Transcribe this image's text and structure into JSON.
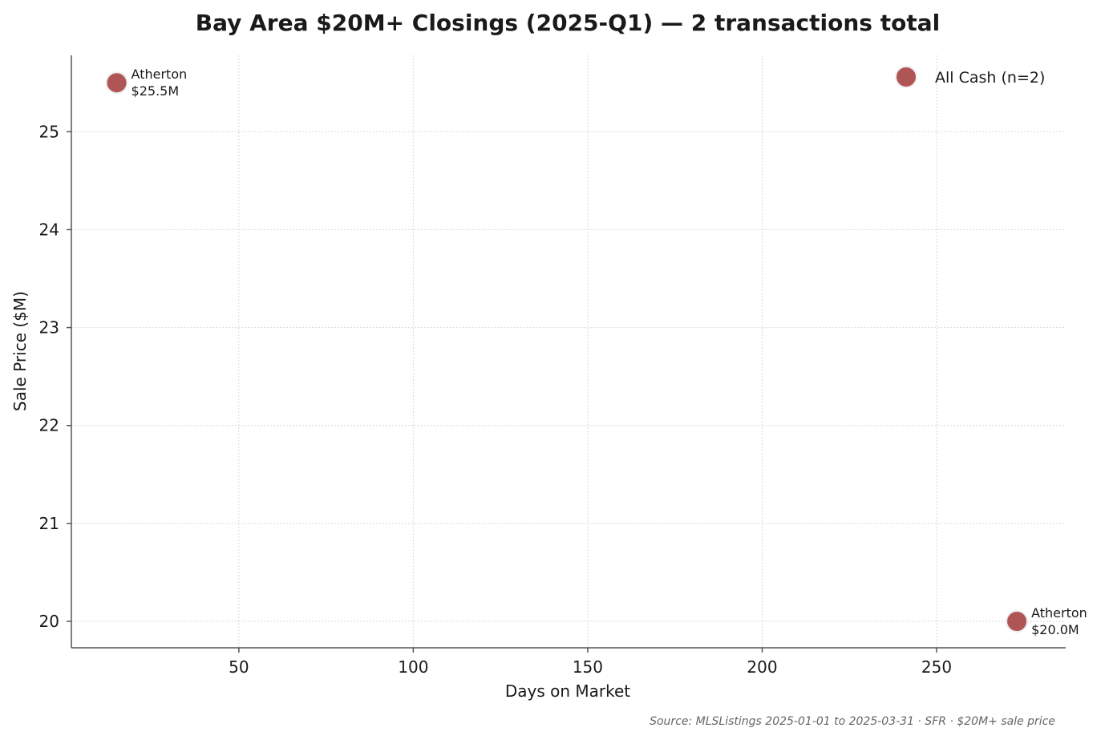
{
  "chart_data": {
    "type": "scatter",
    "title": "Bay Area $20M+ Closings (2025-Q1) — 2 transactions total",
    "xlabel": "Days on Market",
    "ylabel": "Sale Price ($M)",
    "xlim": [
      2,
      287
    ],
    "ylim": [
      19.73,
      25.78
    ],
    "xticks": [
      50,
      100,
      150,
      200,
      250
    ],
    "yticks": [
      20,
      21,
      22,
      23,
      24,
      25
    ],
    "grid": true,
    "legend_position": "top-right",
    "series": [
      {
        "name": "All Cash (n=2)",
        "color": "#b05555",
        "points": [
          {
            "x": 15,
            "y": 25.5,
            "label_line1": "Atherton",
            "label_line2": "$25.5M"
          },
          {
            "x": 273,
            "y": 20.0,
            "label_line1": "Atherton",
            "label_line2": "$20.0M"
          }
        ]
      }
    ],
    "source": "Source: MLSListings 2025-01-01 to 2025-03-31 · SFR · $20M+ sale price"
  }
}
